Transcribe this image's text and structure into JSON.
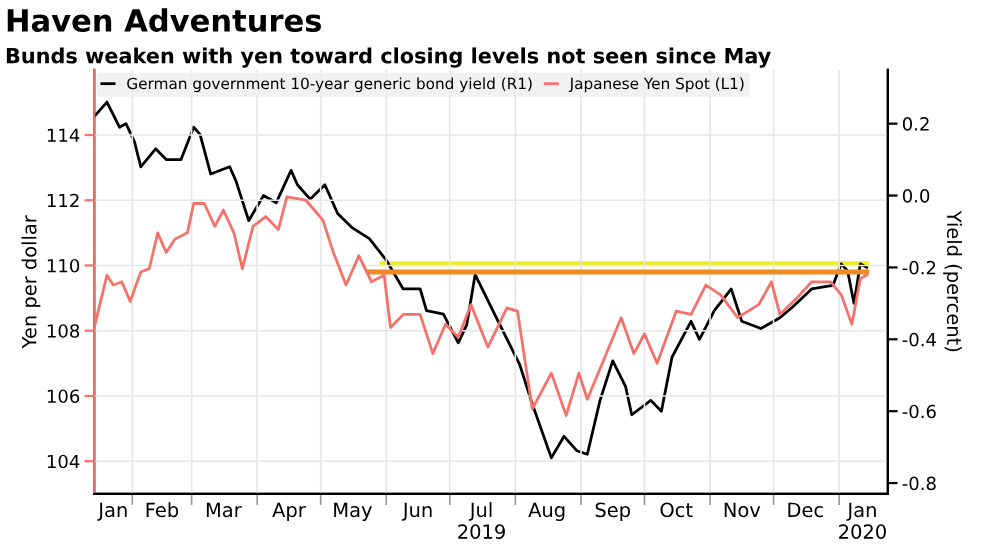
{
  "chart_data": {
    "type": "line",
    "title": "Haven Adventures",
    "subtitle": "Bunds weaken with yen toward closing levels not seen since May",
    "ylabel": "Yen per dollar",
    "y2label": "Yield (percent)",
    "xlim": [
      "2019-01-14",
      "2020-01-24"
    ],
    "xticks": [
      {
        "value": "2019-02-01",
        "label": null
      },
      {
        "value": "2019-03-01",
        "label": null
      },
      {
        "value": "2019-04-01",
        "label": null
      },
      {
        "value": "2019-05-01",
        "label": null
      },
      {
        "value": "2019-06-01",
        "label": null
      },
      {
        "value": "2019-07-01",
        "label": null
      },
      {
        "value": "2019-08-01",
        "label": null
      },
      {
        "value": "2019-09-01",
        "label": null
      },
      {
        "value": "2019-10-01",
        "label": null
      },
      {
        "value": "2019-11-01",
        "label": null
      },
      {
        "value": "2019-12-01",
        "label": null
      },
      {
        "value": "2020-01-01",
        "label": null
      },
      {
        "value": "2019-01-23",
        "label": "Jan"
      },
      {
        "value": "2019-02-15",
        "label": "Feb"
      },
      {
        "value": "2019-03-16",
        "label": "Mar"
      },
      {
        "value": "2019-04-16",
        "label": "Apr"
      },
      {
        "value": "2019-05-16",
        "label": "May"
      },
      {
        "value": "2019-06-16",
        "label": "Jun"
      },
      {
        "value": "2019-07-16",
        "label": "Jul\n2019"
      },
      {
        "value": "2019-08-16",
        "label": "Aug"
      },
      {
        "value": "2019-09-16",
        "label": "Sep"
      },
      {
        "value": "2019-10-16",
        "label": "Oct"
      },
      {
        "value": "2019-11-16",
        "label": "Nov"
      },
      {
        "value": "2019-12-16",
        "label": "Dec"
      },
      {
        "value": "2020-01-12",
        "label": "Jan\n2020"
      }
    ],
    "ylim": [
      103,
      116
    ],
    "yticks": [
      104,
      106,
      108,
      110,
      112,
      114
    ],
    "y2lim": [
      -0.83,
      0.35
    ],
    "y2ticks": [
      -0.8,
      -0.6,
      -0.4,
      -0.2,
      {
        "value": 0,
        "label": "0.0"
      },
      0.2
    ],
    "grid": true,
    "legend": "top left",
    "series": [
      {
        "name": "German government 10-year generic bond yield (R1)",
        "color": "#000000",
        "axis": "y2",
        "x": [
          "2019-01-14",
          "2019-01-20",
          "2019-01-26",
          "2019-01-29",
          "2019-02-02",
          "2019-02-05",
          "2019-02-12",
          "2019-02-17",
          "2019-02-24",
          "2019-03-02",
          "2019-03-05",
          "2019-03-10",
          "2019-03-19",
          "2019-03-22",
          "2019-03-28",
          "2019-04-04",
          "2019-04-10",
          "2019-04-17",
          "2019-04-20",
          "2019-04-26",
          "2019-05-03",
          "2019-05-09",
          "2019-05-16",
          "2019-05-24",
          "2019-06-01",
          "2019-06-09",
          "2019-06-17",
          "2019-06-20",
          "2019-06-28",
          "2019-07-05",
          "2019-07-09",
          "2019-07-13",
          "2019-07-23",
          "2019-08-03",
          "2019-08-09",
          "2019-08-18",
          "2019-08-24",
          "2019-08-30",
          "2019-09-04",
          "2019-09-10",
          "2019-09-16",
          "2019-09-22",
          "2019-09-25",
          "2019-10-04",
          "2019-10-09",
          "2019-10-14",
          "2019-10-23",
          "2019-10-27",
          "2019-11-03",
          "2019-11-11",
          "2019-11-16",
          "2019-11-25",
          "2019-12-04",
          "2019-12-10",
          "2019-12-19",
          "2019-12-29",
          "2020-01-02",
          "2020-01-05",
          "2020-01-08",
          "2020-01-11",
          "2020-01-14"
        ],
        "values": [
          0.22,
          0.26,
          0.19,
          0.2,
          0.15,
          0.08,
          0.13,
          0.1,
          0.1,
          0.19,
          0.17,
          0.06,
          0.08,
          0.04,
          -0.07,
          0.0,
          -0.02,
          0.07,
          0.03,
          -0.01,
          0.03,
          -0.05,
          -0.09,
          -0.12,
          -0.18,
          -0.26,
          -0.26,
          -0.32,
          -0.33,
          -0.41,
          -0.36,
          -0.22,
          -0.34,
          -0.47,
          -0.58,
          -0.73,
          -0.67,
          -0.71,
          -0.72,
          -0.57,
          -0.46,
          -0.53,
          -0.61,
          -0.57,
          -0.6,
          -0.45,
          -0.35,
          -0.4,
          -0.32,
          -0.26,
          -0.35,
          -0.37,
          -0.34,
          -0.31,
          -0.26,
          -0.25,
          -0.19,
          -0.21,
          -0.3,
          -0.19,
          -0.2
        ]
      },
      {
        "name": "Japanese Yen Spot (L1)",
        "color": "#f4726a",
        "x": [
          "2019-01-14",
          "2019-01-20",
          "2019-01-23",
          "2019-01-27",
          "2019-01-31",
          "2019-02-05",
          "2019-02-09",
          "2019-02-13",
          "2019-02-17",
          "2019-02-21",
          "2019-02-27",
          "2019-03-02",
          "2019-03-07",
          "2019-03-12",
          "2019-03-16",
          "2019-03-21",
          "2019-03-25",
          "2019-03-30",
          "2019-04-05",
          "2019-04-11",
          "2019-04-15",
          "2019-04-24",
          "2019-05-02",
          "2019-05-07",
          "2019-05-13",
          "2019-05-19",
          "2019-05-25",
          "2019-05-31",
          "2019-06-03",
          "2019-06-09",
          "2019-06-17",
          "2019-06-23",
          "2019-06-29",
          "2019-07-05",
          "2019-07-11",
          "2019-07-19",
          "2019-07-28",
          "2019-08-02",
          "2019-08-09",
          "2019-08-18",
          "2019-08-25",
          "2019-08-31",
          "2019-09-04",
          "2019-09-13",
          "2019-09-20",
          "2019-09-26",
          "2019-10-01",
          "2019-10-07",
          "2019-10-16",
          "2019-10-23",
          "2019-10-30",
          "2019-11-06",
          "2019-11-14",
          "2019-11-24",
          "2019-11-30",
          "2019-12-04",
          "2019-12-12",
          "2019-12-19",
          "2019-12-28",
          "2020-01-02",
          "2020-01-07",
          "2020-01-11",
          "2020-01-14"
        ],
        "values": [
          108.1,
          109.7,
          109.4,
          109.5,
          108.9,
          109.8,
          109.9,
          111.0,
          110.4,
          110.8,
          111.0,
          111.9,
          111.9,
          111.2,
          111.7,
          111.0,
          109.9,
          111.2,
          111.5,
          111.1,
          112.1,
          112.0,
          111.4,
          110.4,
          109.4,
          110.3,
          109.5,
          109.7,
          108.1,
          108.5,
          108.5,
          107.3,
          108.2,
          107.8,
          108.8,
          107.5,
          108.7,
          108.6,
          105.6,
          106.7,
          105.4,
          106.7,
          105.9,
          107.3,
          108.4,
          107.3,
          107.9,
          107.0,
          108.6,
          108.5,
          109.4,
          109.1,
          108.4,
          108.8,
          109.5,
          108.5,
          109.0,
          109.5,
          109.5,
          109.1,
          108.2,
          109.6,
          109.7
        ]
      },
      {
        "color": "#f2ee1a",
        "axis": "y2",
        "x": [
          "2019-05-30",
          "2020-01-14"
        ],
        "values": [
          -0.19,
          -0.19
        ]
      },
      {
        "color": "#f08a24",
        "x": [
          "2019-05-24",
          "2020-01-14"
        ],
        "values": [
          109.8,
          109.8
        ]
      }
    ]
  }
}
